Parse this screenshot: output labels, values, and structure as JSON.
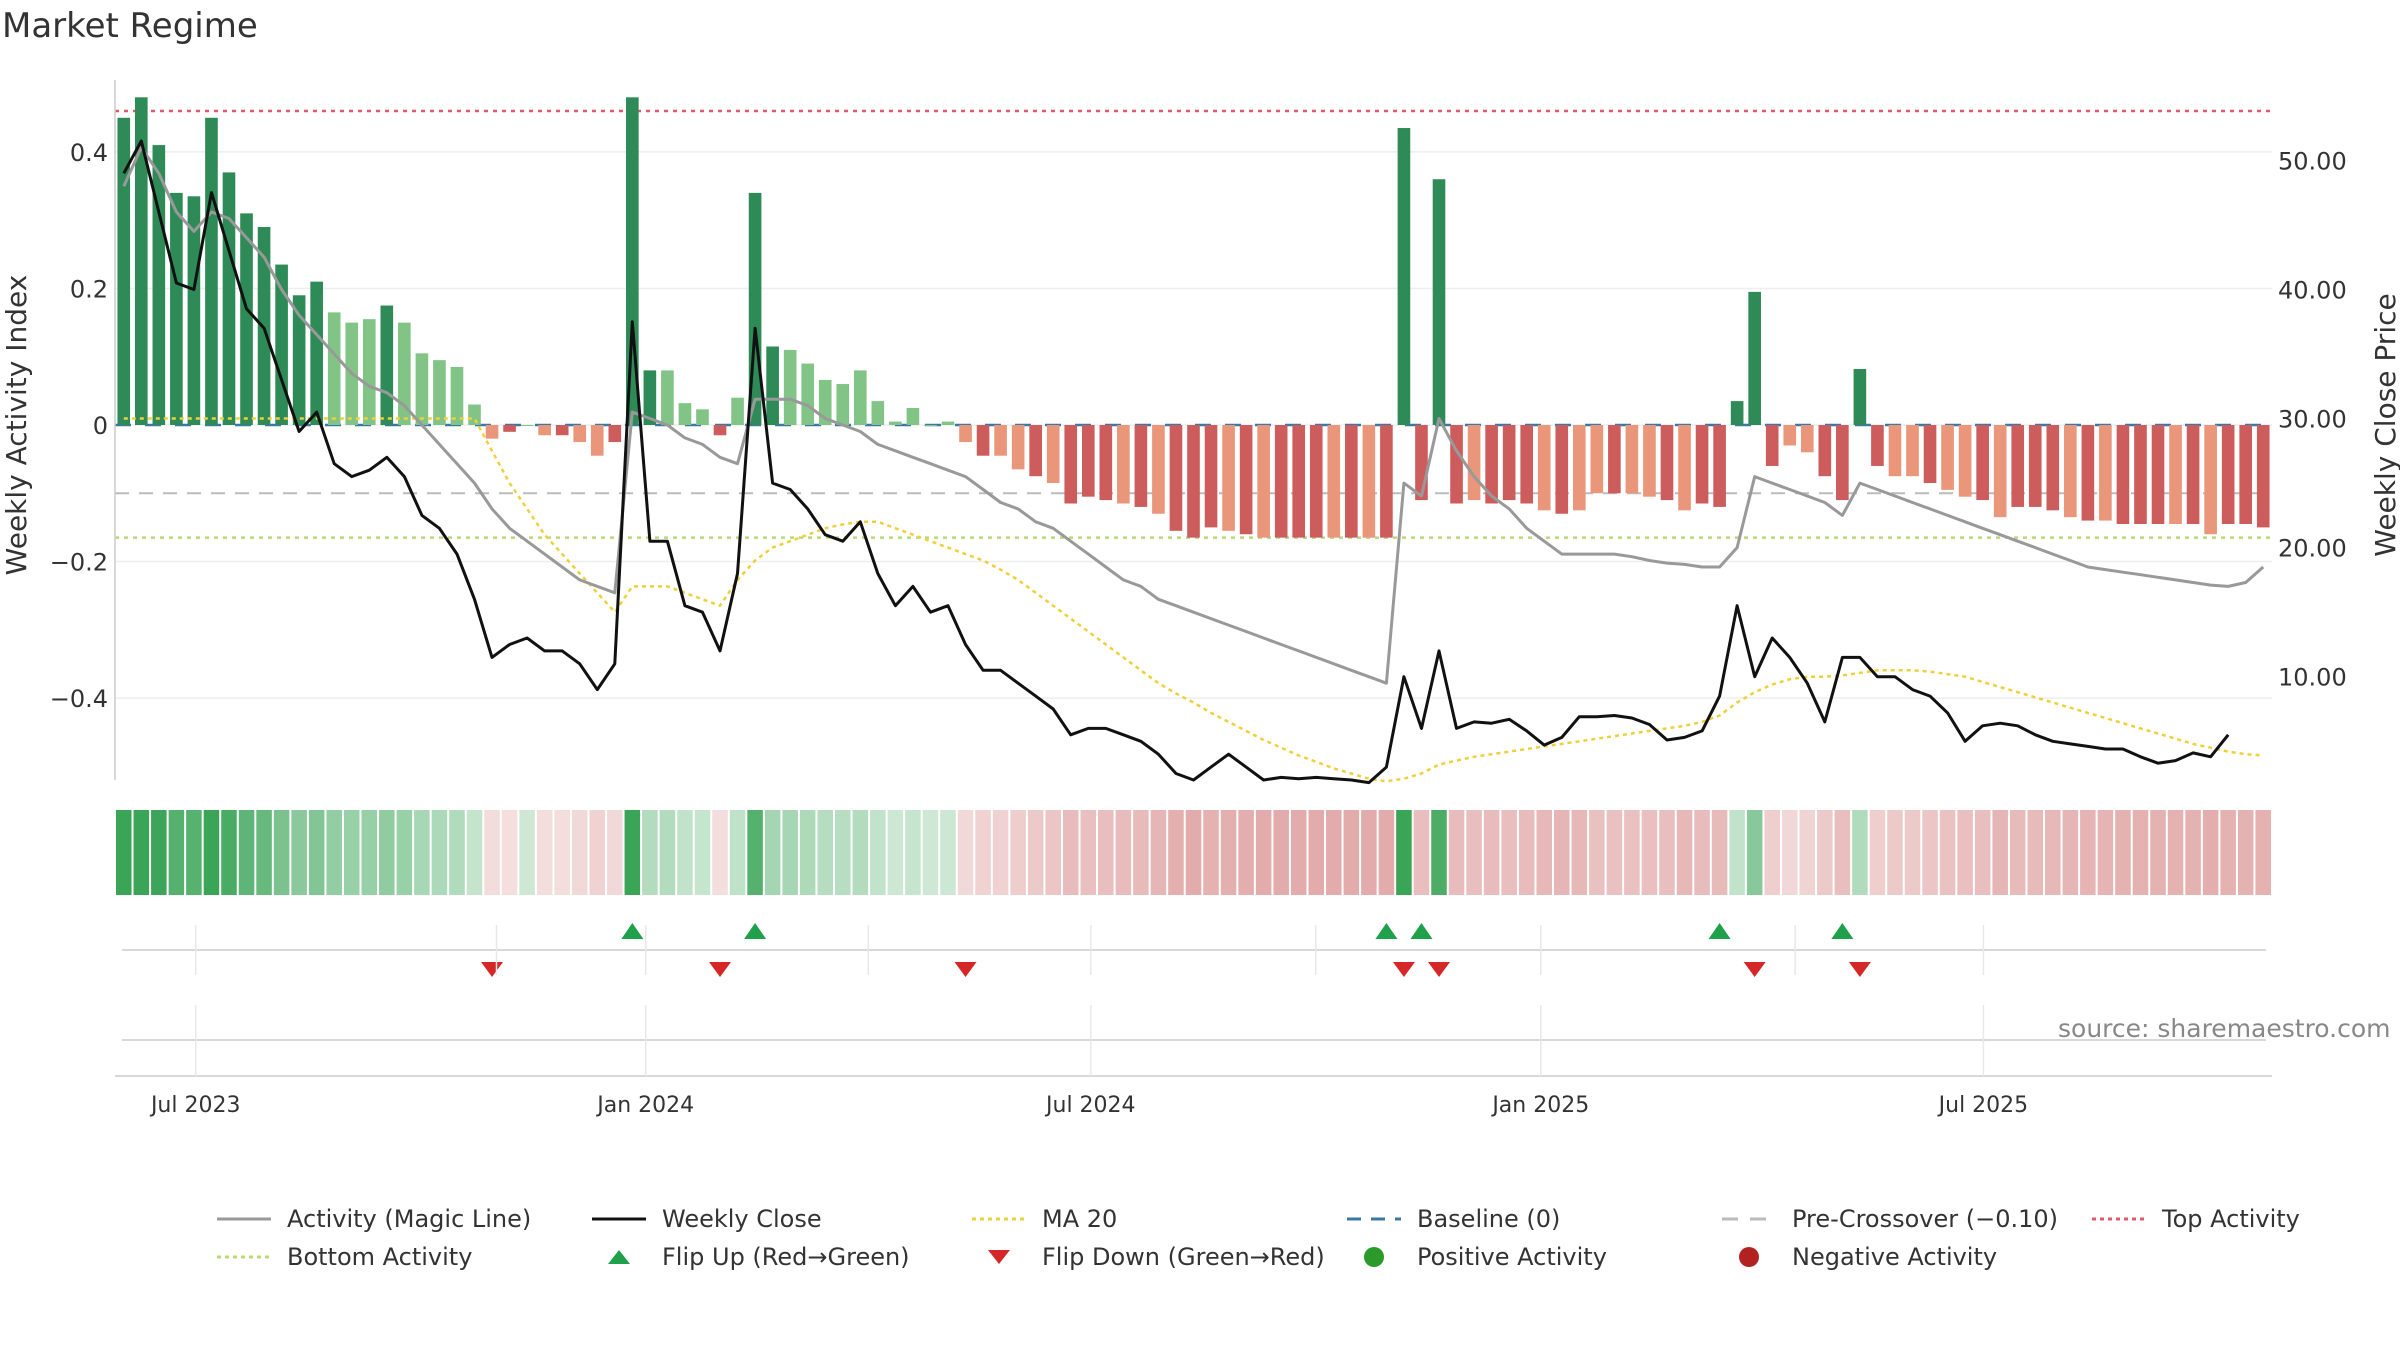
{
  "title": "Market Regime",
  "source": "source: sharemaestro.com",
  "colors": {
    "pos_dark": "#2e8b57",
    "pos_light": "#82c486",
    "neg_dark": "#cd5c5c",
    "neg_light": "#e9967a",
    "magic": "#999999",
    "close": "#111111",
    "ma": "#f0d03a",
    "baseline": "#3a78a6",
    "pre": "#bbbbbb",
    "top": "#e05a6a",
    "bottom": "#b8d97a",
    "flip_up": "#1fa04a",
    "flip_down": "#d62728",
    "pos_dot": "#2a9a2a",
    "neg_dot": "#b22222"
  },
  "legend": [
    {
      "label": "Activity (Magic Line)",
      "icon": "solid-line-icon",
      "color": "#999999"
    },
    {
      "label": "Weekly Close",
      "icon": "solid-line-icon",
      "color": "#111111"
    },
    {
      "label": "MA 20",
      "icon": "dotted-line-icon",
      "color": "#f0d03a"
    },
    {
      "label": "Baseline (0)",
      "icon": "dashed-line-icon",
      "color": "#3a78a6"
    },
    {
      "label": "Pre-Crossover (−0.10)",
      "icon": "long-dash-line-icon",
      "color": "#bbbbbb"
    },
    {
      "label": "Top Activity",
      "icon": "dotted-line-icon",
      "color": "#e05a6a"
    },
    {
      "label": "Bottom Activity",
      "icon": "dotted-line-icon",
      "color": "#b8d97a"
    },
    {
      "label": "Flip Up (Red→Green)",
      "icon": "triangle-up-icon",
      "color": "#1fa04a"
    },
    {
      "label": "Flip Down (Green→Red)",
      "icon": "triangle-down-icon",
      "color": "#d62728"
    },
    {
      "label": "Positive Activity",
      "icon": "circle-icon",
      "color": "#2a9a2a"
    },
    {
      "label": "Negative Activity",
      "icon": "circle-icon",
      "color": "#b22222"
    }
  ],
  "chart_data": {
    "type": "bar",
    "x_axis": {
      "type": "date",
      "tick_labels": [
        "Jul 2023",
        "Jan 2024",
        "Jul 2024",
        "Jan 2025",
        "Jul 2025"
      ],
      "range": [
        "2023-05-29",
        "2025-10-27"
      ]
    },
    "y_left": {
      "label": "Weekly Activity Index",
      "range": [
        -0.52,
        0.52
      ],
      "ticks": [
        0.4,
        0.2,
        0,
        -0.2,
        -0.4
      ],
      "tick_labels": [
        "0.4",
        "0.2",
        "0",
        "−0.2",
        "−0.4"
      ]
    },
    "y_right": {
      "label": "Weekly Close Price",
      "range": [
        2,
        57
      ],
      "ticks": [
        50,
        40,
        30,
        20,
        10
      ],
      "tick_labels": [
        "50.00",
        "40.00",
        "30.00",
        "20.00",
        "10.00"
      ]
    },
    "reference_lines": {
      "baseline": 0,
      "pre_crossover": -0.1,
      "top_activity": 0.46,
      "bottom_activity": -0.165
    },
    "grid": "horizontal",
    "legend_position": "bottom",
    "activity": [
      0.45,
      0.48,
      0.41,
      0.34,
      0.335,
      0.45,
      0.37,
      0.31,
      0.29,
      0.235,
      0.19,
      0.21,
      0.165,
      0.15,
      0.155,
      0.175,
      0.15,
      0.105,
      0.095,
      0.085,
      0.03,
      -0.02,
      -0.01,
      0,
      -0.015,
      -0.015,
      -0.025,
      -0.045,
      -0.025,
      0.48,
      0.08,
      0.08,
      0.032,
      0.023,
      -0.015,
      0.04,
      0.34,
      0.115,
      0.11,
      0.09,
      0.066,
      0.06,
      0.08,
      0.035,
      0.005,
      0.025,
      0,
      0.005,
      -0.025,
      -0.045,
      -0.045,
      -0.065,
      -0.075,
      -0.085,
      -0.115,
      -0.105,
      -0.11,
      -0.115,
      -0.12,
      -0.13,
      -0.155,
      -0.165,
      -0.15,
      -0.155,
      -0.16,
      -0.165,
      -0.165,
      -0.165,
      -0.165,
      -0.165,
      -0.165,
      -0.165,
      -0.165,
      0.435,
      -0.11,
      0.36,
      -0.115,
      -0.11,
      -0.115,
      -0.11,
      -0.115,
      -0.125,
      -0.13,
      -0.125,
      -0.1,
      -0.1,
      -0.1,
      -0.105,
      -0.11,
      -0.125,
      -0.115,
      -0.12,
      0.035,
      0.195,
      -0.06,
      -0.03,
      -0.04,
      -0.075,
      -0.11,
      0.082,
      -0.06,
      -0.075,
      -0.075,
      -0.085,
      -0.095,
      -0.105,
      -0.11,
      -0.135,
      -0.12,
      -0.12,
      -0.125,
      -0.135,
      -0.14,
      -0.14,
      -0.145,
      -0.145,
      -0.145,
      -0.145,
      -0.145,
      -0.16,
      -0.145,
      -0.145,
      -0.15
    ],
    "weekly_close": [
      49,
      51.5,
      46,
      40.5,
      40,
      47.5,
      43,
      38.5,
      37,
      33,
      29,
      30.5,
      26.5,
      25.5,
      26,
      27,
      25.5,
      22.5,
      21.5,
      19.5,
      16,
      11.5,
      12.5,
      13,
      12,
      12,
      11,
      9,
      11,
      37.5,
      20.5,
      20.5,
      15.5,
      15,
      12,
      18,
      37,
      25,
      24.5,
      23,
      21,
      20.5,
      22,
      18,
      15.5,
      17,
      15,
      15.5,
      12.5,
      10.5,
      10.5,
      9.5,
      8.5,
      7.5,
      5.5,
      6,
      6,
      5.5,
      5,
      4,
      2.5,
      2,
      3,
      4,
      3,
      2,
      2.2,
      2.1,
      2.2,
      2.1,
      2,
      1.8,
      3,
      10,
      6,
      12,
      6,
      6.5,
      6.4,
      6.7,
      5.8,
      4.7,
      5.3,
      6.9,
      6.9,
      7,
      6.8,
      6.3,
      5.1,
      5.3,
      5.8,
      8.5,
      15.5,
      10,
      13,
      11.5,
      9.5,
      6.5,
      11.5,
      11.5,
      10,
      10,
      9,
      8.5,
      7.2,
      5,
      6.2,
      6.4,
      6.2,
      5.5,
      5,
      4.8,
      4.6,
      4.4,
      4.4,
      3.8,
      3.3,
      3.5,
      4.1,
      3.8,
      5.5
    ],
    "magic_line": [
      48,
      51,
      49,
      46,
      44.5,
      46,
      45.5,
      44,
      42.5,
      40,
      38,
      36.5,
      35,
      33.5,
      32.5,
      32,
      31,
      29.5,
      28,
      26.5,
      25,
      23,
      21.5,
      20.5,
      19.5,
      18.5,
      17.5,
      17,
      16.5,
      30.5,
      30,
      29.5,
      28.5,
      28,
      27,
      26.5,
      31.5,
      31.5,
      31.5,
      31,
      30,
      29.5,
      29,
      28,
      27.5,
      27,
      26.5,
      26,
      25.5,
      24.5,
      23.5,
      23,
      22,
      21.5,
      20.5,
      19.5,
      18.5,
      17.5,
      17,
      16,
      15.5,
      15,
      14.5,
      14,
      13.5,
      13,
      12.5,
      12,
      11.5,
      11,
      10.5,
      10,
      9.5,
      25,
      24,
      30,
      27.5,
      25.5,
      24,
      23,
      21.5,
      20.5,
      19.5,
      19.5,
      19.5,
      19.5,
      19.3,
      19,
      18.8,
      18.7,
      18.5,
      18.5,
      20,
      25.5,
      25,
      24.5,
      24,
      23.5,
      22.5,
      25,
      24.5,
      24,
      23.5,
      23,
      22.5,
      22,
      21.5,
      21,
      20.5,
      20,
      19.5,
      19,
      18.5,
      18.3,
      18.1,
      17.9,
      17.7,
      17.5,
      17.3,
      17.1,
      17,
      17.3,
      18.5
    ],
    "ma20": [
      30,
      30,
      30,
      30,
      30,
      30,
      30,
      30,
      30,
      30,
      30,
      30,
      30,
      30,
      30,
      30,
      30,
      30,
      30,
      30,
      30,
      27.5,
      25,
      23,
      21,
      19.5,
      18,
      16.5,
      15,
      17,
      17,
      17,
      16.5,
      16,
      15.5,
      17.5,
      19,
      20,
      20.5,
      21,
      21.5,
      21.8,
      22,
      22,
      21.5,
      21,
      20.5,
      20,
      19.5,
      19,
      18.3,
      17.5,
      16.5,
      15.5,
      14.5,
      13.5,
      12.5,
      11.5,
      10.5,
      9.5,
      8.7,
      8,
      7.2,
      6.5,
      5.8,
      5.1,
      4.5,
      3.9,
      3.4,
      2.9,
      2.5,
      2.1,
      1.9,
      2.1,
      2.5,
      3.2,
      3.5,
      3.8,
      4,
      4.2,
      4.4,
      4.6,
      4.8,
      5,
      5.2,
      5.4,
      5.6,
      5.8,
      6,
      6.2,
      6.5,
      7,
      8,
      8.8,
      9.4,
      9.8,
      10,
      10,
      10.1,
      10.3,
      10.5,
      10.5,
      10.5,
      10.4,
      10.2,
      10,
      9.6,
      9.2,
      8.8,
      8.4,
      8,
      7.6,
      7.2,
      6.8,
      6.4,
      6,
      5.6,
      5.2,
      4.8,
      4.5,
      4.2,
      4,
      3.9
    ],
    "flip_up_indices": [
      29,
      36,
      72,
      74,
      91,
      98
    ],
    "flip_down_indices": [
      21,
      34,
      48,
      73,
      75,
      93,
      99
    ]
  }
}
